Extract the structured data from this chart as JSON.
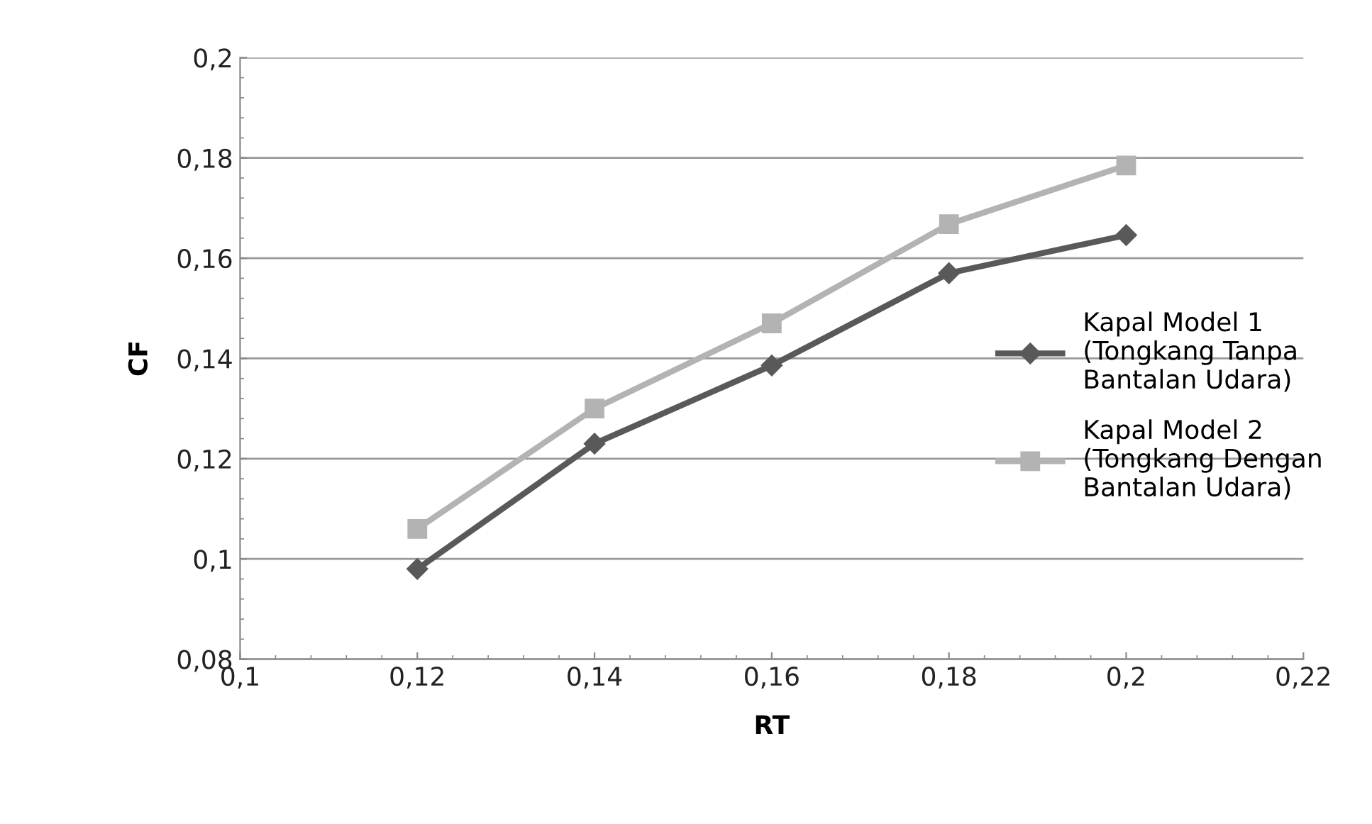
{
  "chart_data": {
    "type": "line",
    "xlabel": "RT",
    "ylabel": "CF",
    "xlim": [
      0.1,
      0.22
    ],
    "xticks": [
      {
        "value": 0.1,
        "label": "0,1"
      },
      {
        "value": 0.12,
        "label": "0,12"
      },
      {
        "value": 0.14,
        "label": "0,14"
      },
      {
        "value": 0.16,
        "label": "0,16"
      },
      {
        "value": 0.18,
        "label": "0,18"
      },
      {
        "value": 0.2,
        "label": "0,2"
      },
      {
        "value": 0.22,
        "label": "0,22"
      }
    ],
    "ylim": [
      0.08,
      0.2
    ],
    "yticks": [
      {
        "value": 0.08,
        "label": "0,08"
      },
      {
        "value": 0.1,
        "label": "0,1"
      },
      {
        "value": 0.12,
        "label": "0,12"
      },
      {
        "value": 0.14,
        "label": "0,14"
      },
      {
        "value": 0.16,
        "label": "0,16"
      },
      {
        "value": 0.18,
        "label": "0,18"
      },
      {
        "value": 0.2,
        "label": "0,2"
      }
    ],
    "x": [
      0.12,
      0.14,
      0.16,
      0.18,
      0.2
    ],
    "series": [
      {
        "name": "Kapal Model 1\n(Tongkang Tanpa\nBantalan Udara)",
        "color": "#595959",
        "marker": "diamond",
        "values": [
          0.098,
          0.123,
          0.1386,
          0.157,
          0.1646
        ]
      },
      {
        "name": "Kapal Model 2\n(Tongkang Dengan\nBantalan Udara)",
        "color": "#b3b3b3",
        "marker": "square",
        "values": [
          0.106,
          0.13,
          0.147,
          0.1668,
          0.1785
        ]
      }
    ],
    "grid": "y",
    "legend": "right"
  }
}
